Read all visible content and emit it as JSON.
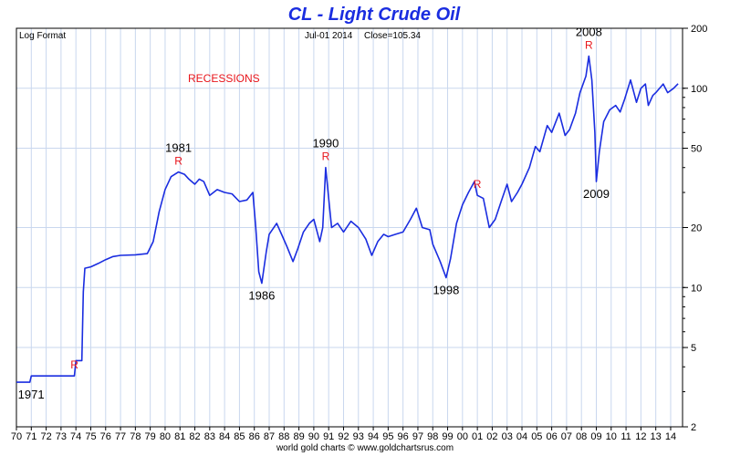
{
  "chart_data": {
    "type": "line",
    "title": "CL  -  Light Crude Oil",
    "scale_label": "Log Format",
    "date_label": "Jul-01  2014",
    "close_label": "Close=105.34",
    "footer": "world gold charts © www.goldchartsrus.com",
    "recessions_label": "RECESSIONS",
    "y_scale": "log",
    "ylim": [
      2,
      200
    ],
    "y_ticks": [
      2,
      5,
      10,
      20,
      50,
      100,
      200
    ],
    "y_tick_labels": [
      "2",
      "5",
      "10",
      "20",
      "50",
      "100",
      "200"
    ],
    "xlim": [
      1970,
      2014.8
    ],
    "x_ticks": [
      1970,
      1971,
      1972,
      1973,
      1974,
      1975,
      1976,
      1977,
      1978,
      1979,
      1980,
      1981,
      1982,
      1983,
      1984,
      1985,
      1986,
      1987,
      1988,
      1989,
      1990,
      1991,
      1992,
      1993,
      1994,
      1995,
      1996,
      1997,
      1998,
      1999,
      2000,
      2001,
      2002,
      2003,
      2004,
      2005,
      2006,
      2007,
      2008,
      2009,
      2010,
      2011,
      2012,
      2013,
      2014
    ],
    "x_tick_labels": [
      "70",
      "71",
      "72",
      "73",
      "74",
      "75",
      "76",
      "77",
      "78",
      "79",
      "80",
      "81",
      "82",
      "83",
      "84",
      "85",
      "86",
      "87",
      "88",
      "89",
      "90",
      "91",
      "92",
      "93",
      "94",
      "95",
      "96",
      "97",
      "98",
      "99",
      "00",
      "01",
      "02",
      "03",
      "04",
      "05",
      "06",
      "07",
      "08",
      "09",
      "10",
      "11",
      "12",
      "13",
      "14"
    ],
    "grid": true,
    "colors": {
      "line": "#1a2de0",
      "title": "#1a2de0",
      "recession": "#e8151b",
      "grid": "#c9d7ee"
    },
    "series": [
      {
        "points": [
          [
            1970.0,
            3.35
          ],
          [
            1970.9,
            3.35
          ],
          [
            1971.0,
            3.6
          ],
          [
            1973.9,
            3.6
          ],
          [
            1974.0,
            4.3
          ],
          [
            1974.4,
            4.3
          ],
          [
            1974.5,
            9.5
          ],
          [
            1974.6,
            12.5
          ],
          [
            1975.0,
            12.7
          ],
          [
            1975.5,
            13.2
          ],
          [
            1976.0,
            13.8
          ],
          [
            1976.5,
            14.3
          ],
          [
            1977.0,
            14.5
          ],
          [
            1978.0,
            14.6
          ],
          [
            1978.8,
            14.8
          ],
          [
            1979.2,
            17
          ],
          [
            1979.6,
            24
          ],
          [
            1980.0,
            31
          ],
          [
            1980.4,
            36
          ],
          [
            1980.9,
            38
          ],
          [
            1981.3,
            37
          ],
          [
            1981.6,
            35
          ],
          [
            1982.0,
            33
          ],
          [
            1982.3,
            35
          ],
          [
            1982.6,
            34
          ],
          [
            1983.0,
            29
          ],
          [
            1983.5,
            31
          ],
          [
            1984.0,
            30
          ],
          [
            1984.5,
            29.5
          ],
          [
            1985.0,
            27
          ],
          [
            1985.5,
            27.5
          ],
          [
            1985.9,
            30
          ],
          [
            1986.1,
            20
          ],
          [
            1986.3,
            12
          ],
          [
            1986.5,
            10.5
          ],
          [
            1986.8,
            15
          ],
          [
            1987.0,
            18.5
          ],
          [
            1987.5,
            21
          ],
          [
            1987.9,
            18
          ],
          [
            1988.2,
            16
          ],
          [
            1988.6,
            13.5
          ],
          [
            1988.9,
            15.5
          ],
          [
            1989.3,
            19
          ],
          [
            1989.7,
            21
          ],
          [
            1990.0,
            22
          ],
          [
            1990.4,
            17
          ],
          [
            1990.6,
            20
          ],
          [
            1990.8,
            40
          ],
          [
            1991.0,
            28
          ],
          [
            1991.2,
            20
          ],
          [
            1991.6,
            21
          ],
          [
            1992.0,
            19
          ],
          [
            1992.5,
            21.5
          ],
          [
            1993.0,
            20
          ],
          [
            1993.5,
            17.5
          ],
          [
            1993.9,
            14.5
          ],
          [
            1994.3,
            17
          ],
          [
            1994.7,
            18.5
          ],
          [
            1995.0,
            18
          ],
          [
            1995.5,
            18.5
          ],
          [
            1996.0,
            19
          ],
          [
            1996.5,
            22
          ],
          [
            1996.9,
            25
          ],
          [
            1997.3,
            20
          ],
          [
            1997.8,
            19.5
          ],
          [
            1998.0,
            16.5
          ],
          [
            1998.5,
            13.5
          ],
          [
            1998.9,
            11.2
          ],
          [
            1999.2,
            14
          ],
          [
            1999.6,
            21
          ],
          [
            2000.0,
            26
          ],
          [
            2000.4,
            30
          ],
          [
            2000.8,
            34
          ],
          [
            2001.0,
            29
          ],
          [
            2001.4,
            28
          ],
          [
            2001.8,
            20
          ],
          [
            2002.2,
            22
          ],
          [
            2002.6,
            27
          ],
          [
            2003.0,
            33
          ],
          [
            2003.3,
            27
          ],
          [
            2003.7,
            30
          ],
          [
            2004.0,
            33
          ],
          [
            2004.5,
            40
          ],
          [
            2004.9,
            51
          ],
          [
            2005.2,
            48
          ],
          [
            2005.7,
            65
          ],
          [
            2006.0,
            60
          ],
          [
            2006.5,
            75
          ],
          [
            2006.9,
            58
          ],
          [
            2007.2,
            62
          ],
          [
            2007.6,
            75
          ],
          [
            2007.9,
            95
          ],
          [
            2008.3,
            115
          ],
          [
            2008.5,
            145
          ],
          [
            2008.7,
            110
          ],
          [
            2008.9,
            60
          ],
          [
            2009.0,
            34
          ],
          [
            2009.2,
            48
          ],
          [
            2009.5,
            68
          ],
          [
            2009.9,
            78
          ],
          [
            2010.3,
            82
          ],
          [
            2010.6,
            76
          ],
          [
            2010.9,
            88
          ],
          [
            2011.3,
            110
          ],
          [
            2011.7,
            85
          ],
          [
            2012.0,
            100
          ],
          [
            2012.3,
            105
          ],
          [
            2012.5,
            82
          ],
          [
            2012.8,
            92
          ],
          [
            2013.0,
            95
          ],
          [
            2013.5,
            105
          ],
          [
            2013.8,
            95
          ],
          [
            2014.2,
            100
          ],
          [
            2014.5,
            105.34
          ]
        ]
      }
    ],
    "annotations": [
      {
        "text": "1971",
        "x": 1970.1,
        "y": 3.35,
        "place": "below"
      },
      {
        "text": "1981",
        "x": 1980.9,
        "y": 38,
        "place": "above"
      },
      {
        "text": "1986",
        "x": 1986.5,
        "y": 10.5,
        "place": "below"
      },
      {
        "text": "1990",
        "x": 1990.8,
        "y": 40,
        "place": "above"
      },
      {
        "text": "1998",
        "x": 1998.9,
        "y": 11.2,
        "place": "below"
      },
      {
        "text": "2008",
        "x": 2008.5,
        "y": 145,
        "place": "above"
      },
      {
        "text": "2009",
        "x": 2009.0,
        "y": 34,
        "place": "below"
      }
    ],
    "recessions": [
      {
        "text": "R",
        "x": 1973.9
      },
      {
        "text": "R",
        "x": 1980.9
      },
      {
        "text": "R",
        "x": 1990.8
      },
      {
        "text": "R",
        "x": 2001.0
      },
      {
        "text": "R",
        "x": 2008.5
      }
    ]
  }
}
